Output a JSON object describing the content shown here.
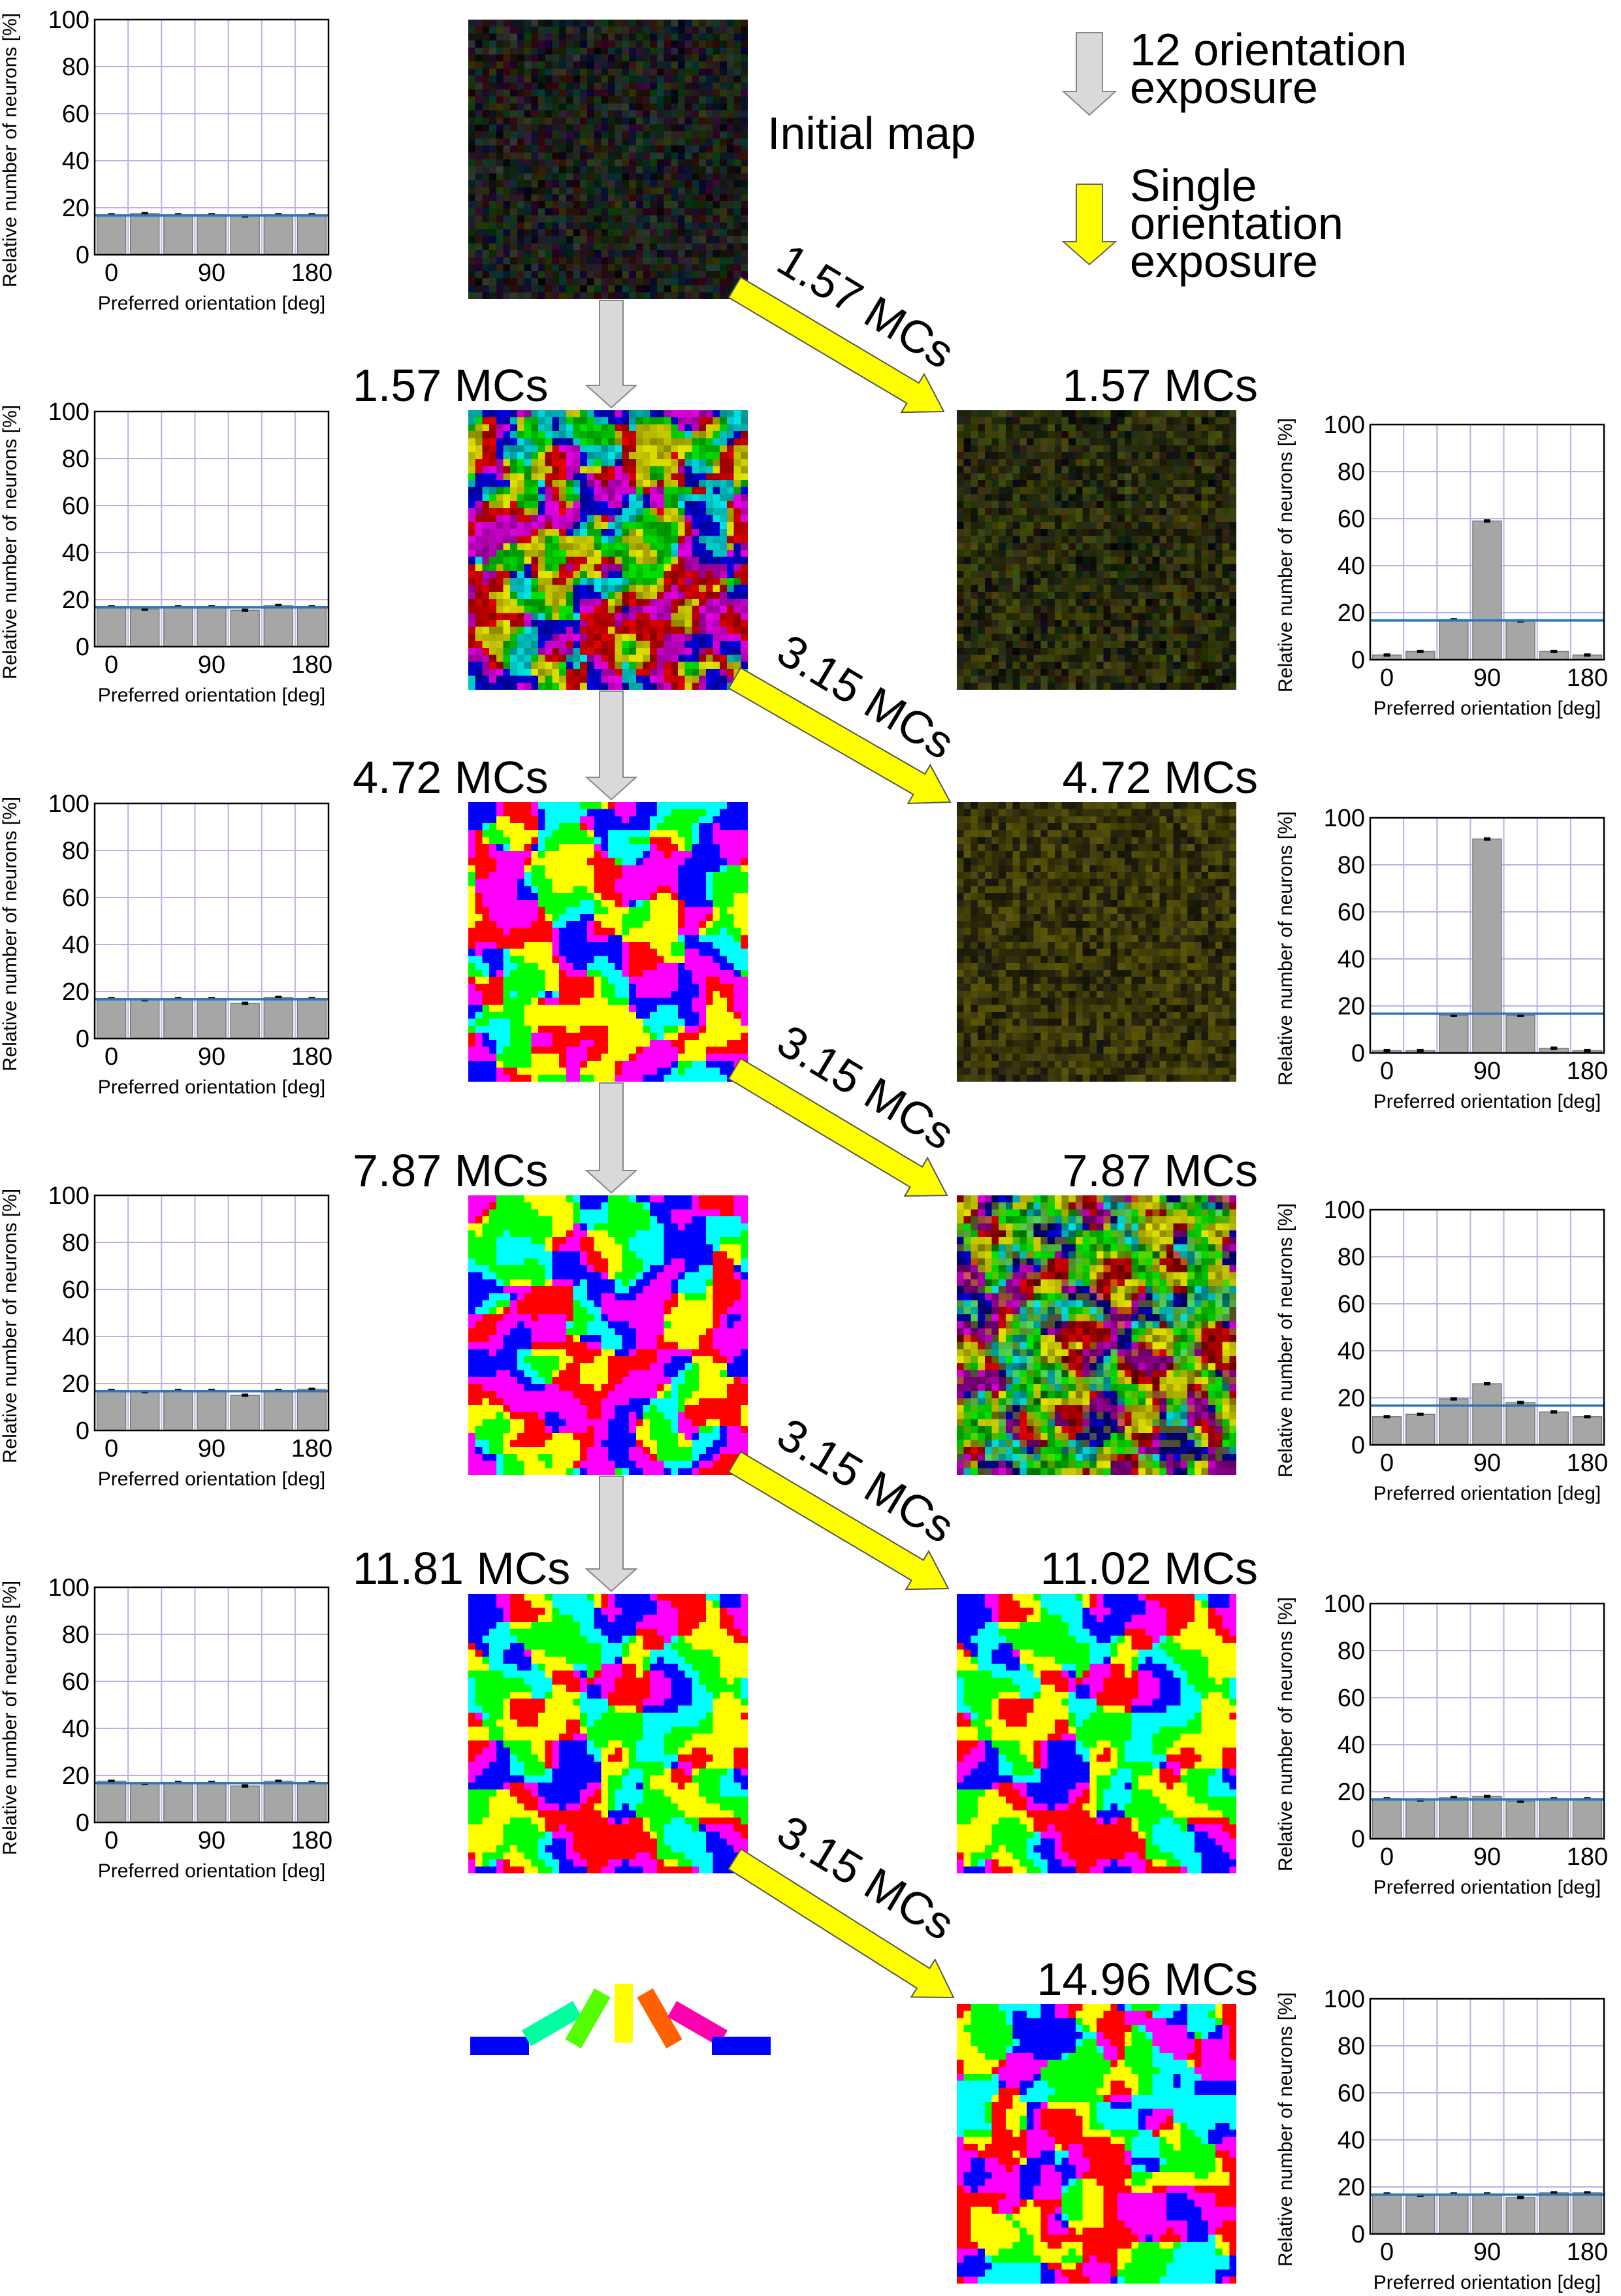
{
  "legend": {
    "gray_arrow_label": [
      "12 orientation",
      "exposure"
    ],
    "yellow_arrow_label": [
      "Single",
      "orientation",
      "exposure"
    ]
  },
  "initial_map_label": "Initial map",
  "colors": {
    "gray_arrow": "#d9d9d9",
    "yellow_arrow": "#ffff00",
    "bar": "#a6a6a6",
    "baseline": "#2e75b6",
    "grid": "#b3b3e6"
  },
  "orientation_key_colors": [
    "#0000ff",
    "#00ffa0",
    "#55ff00",
    "#ffff00",
    "#ff6000",
    "#ff00b0",
    "#0000ff"
  ],
  "maps": {
    "initial": {
      "style": "dark-noise",
      "seed": 3
    },
    "left_1": {
      "label": "1.57 MCs",
      "style": "smooth-mix",
      "seed": 11
    },
    "left_2": {
      "label": "4.72 MCs",
      "style": "patchy",
      "seed": 21
    },
    "left_3": {
      "label": "7.87 MCs",
      "style": "patchy",
      "seed": 31
    },
    "left_4": {
      "label": "11.81 MCs",
      "style": "patchy",
      "seed": 41
    },
    "right_1": {
      "label": "1.57 MCs",
      "style": "dark-noise-yellowish",
      "seed": 51
    },
    "right_2": {
      "label": "4.72 MCs",
      "style": "dark-noise-yellow",
      "seed": 61
    },
    "right_3": {
      "label": "7.87 MCs",
      "style": "mixed-dim",
      "seed": 71
    },
    "right_4": {
      "label": "11.02 MCs",
      "style": "patchy",
      "seed": 41
    },
    "right_5": {
      "label": "14.96 MCs",
      "style": "patchy",
      "seed": 81
    }
  },
  "transition_labels": {
    "t0": "1.57 MCs",
    "t1": "3.15 MCs",
    "t2": "3.15 MCs",
    "t3": "3.15 MCs",
    "t4": "3.15 MCs"
  },
  "chart_data": [
    {
      "id": "left_0",
      "type": "bar",
      "ylabel": "Relative number of neurons [%]",
      "xlabel": "Preferred orientation [deg]",
      "x_ticks": [
        "0",
        "90",
        "180"
      ],
      "y_ticks": [
        "0",
        "20",
        "40",
        "60",
        "80",
        "100"
      ],
      "ylim": [
        0,
        100
      ],
      "categories": [
        0,
        30,
        60,
        90,
        120,
        150,
        180
      ],
      "values": [
        17,
        17.5,
        17,
        17,
        16.5,
        17,
        17
      ],
      "baseline": 16.7,
      "grid": true
    },
    {
      "id": "left_1",
      "type": "bar",
      "ylabel": "Relative number of neurons [%]",
      "xlabel": "Preferred orientation [deg]",
      "x_ticks": [
        "0",
        "90",
        "180"
      ],
      "y_ticks": [
        "0",
        "20",
        "40",
        "60",
        "80",
        "100"
      ],
      "ylim": [
        0,
        100
      ],
      "categories": [
        0,
        30,
        60,
        90,
        120,
        150,
        180
      ],
      "values": [
        17,
        16,
        17,
        17,
        15.5,
        17.5,
        17
      ],
      "baseline": 16.7,
      "grid": true
    },
    {
      "id": "left_2",
      "type": "bar",
      "ylabel": "Relative number of neurons [%]",
      "xlabel": "Preferred orientation [deg]",
      "x_ticks": [
        "0",
        "90",
        "180"
      ],
      "y_ticks": [
        "0",
        "20",
        "40",
        "60",
        "80",
        "100"
      ],
      "ylim": [
        0,
        100
      ],
      "categories": [
        0,
        30,
        60,
        90,
        120,
        150,
        180
      ],
      "values": [
        17,
        16.5,
        17,
        17,
        15,
        17.5,
        17
      ],
      "baseline": 16.7,
      "grid": true
    },
    {
      "id": "left_3",
      "type": "bar",
      "ylabel": "Relative number of neurons [%]",
      "xlabel": "Preferred orientation [deg]",
      "x_ticks": [
        "0",
        "90",
        "180"
      ],
      "y_ticks": [
        "0",
        "20",
        "40",
        "60",
        "80",
        "100"
      ],
      "ylim": [
        0,
        100
      ],
      "categories": [
        0,
        30,
        60,
        90,
        120,
        150,
        180
      ],
      "values": [
        17,
        16.5,
        17,
        17,
        15,
        17,
        17.5
      ],
      "baseline": 16.7,
      "grid": true
    },
    {
      "id": "left_4",
      "type": "bar",
      "ylabel": "Relative number of neurons [%]",
      "xlabel": "Preferred orientation [deg]",
      "x_ticks": [
        "0",
        "90",
        "180"
      ],
      "y_ticks": [
        "0",
        "20",
        "40",
        "60",
        "80",
        "100"
      ],
      "ylim": [
        0,
        100
      ],
      "categories": [
        0,
        30,
        60,
        90,
        120,
        150,
        180
      ],
      "values": [
        17.5,
        16.5,
        17,
        17,
        15.5,
        17.5,
        17
      ],
      "baseline": 16.7,
      "grid": true
    },
    {
      "id": "right_1",
      "type": "bar",
      "ylabel": "Relative number of neurons [%]",
      "xlabel": "Preferred orientation [deg]",
      "x_ticks": [
        "0",
        "90",
        "180"
      ],
      "y_ticks": [
        "0",
        "20",
        "40",
        "60",
        "80",
        "100"
      ],
      "ylim": [
        0,
        100
      ],
      "categories": [
        0,
        30,
        60,
        90,
        120,
        150,
        180
      ],
      "values": [
        2,
        3.5,
        17,
        59,
        16.5,
        3.5,
        2
      ],
      "baseline": 16.7,
      "grid": true
    },
    {
      "id": "right_2",
      "type": "bar",
      "ylabel": "Relative number of neurons [%]",
      "xlabel": "Preferred orientation [deg]",
      "x_ticks": [
        "0",
        "90",
        "180"
      ],
      "y_ticks": [
        "0",
        "20",
        "40",
        "60",
        "80",
        "100"
      ],
      "ylim": [
        0,
        100
      ],
      "categories": [
        0,
        30,
        60,
        90,
        120,
        150,
        180
      ],
      "values": [
        1,
        1,
        16,
        91,
        16,
        2,
        1
      ],
      "baseline": 16.7,
      "grid": true
    },
    {
      "id": "right_3",
      "type": "bar",
      "ylabel": "Relative number of neurons [%]",
      "xlabel": "Preferred orientation [deg]",
      "x_ticks": [
        "0",
        "90",
        "180"
      ],
      "y_ticks": [
        "0",
        "20",
        "40",
        "60",
        "80",
        "100"
      ],
      "ylim": [
        0,
        100
      ],
      "categories": [
        0,
        30,
        60,
        90,
        120,
        150,
        180
      ],
      "values": [
        12,
        13,
        19.5,
        26,
        18,
        14,
        12
      ],
      "baseline": 16.7,
      "grid": true
    },
    {
      "id": "right_4",
      "type": "bar",
      "ylabel": "Relative number of neurons [%]",
      "xlabel": "Preferred orientation [deg]",
      "x_ticks": [
        "0",
        "90",
        "180"
      ],
      "y_ticks": [
        "0",
        "20",
        "40",
        "60",
        "80",
        "100"
      ],
      "ylim": [
        0,
        100
      ],
      "categories": [
        0,
        30,
        60,
        90,
        120,
        150,
        180
      ],
      "values": [
        17,
        16.5,
        17.5,
        18,
        16,
        17,
        17
      ],
      "baseline": 16.7,
      "grid": true
    },
    {
      "id": "right_5",
      "type": "bar",
      "ylabel": "Relative number of neurons [%]",
      "xlabel": "Preferred orientation [deg]",
      "x_ticks": [
        "0",
        "90",
        "180"
      ],
      "y_ticks": [
        "0",
        "20",
        "40",
        "60",
        "80",
        "100"
      ],
      "ylim": [
        0,
        100
      ],
      "categories": [
        0,
        30,
        60,
        90,
        120,
        150,
        180
      ],
      "values": [
        17,
        16.5,
        17,
        17,
        15.5,
        17.5,
        17.5
      ],
      "baseline": 16.7,
      "grid": true
    }
  ]
}
